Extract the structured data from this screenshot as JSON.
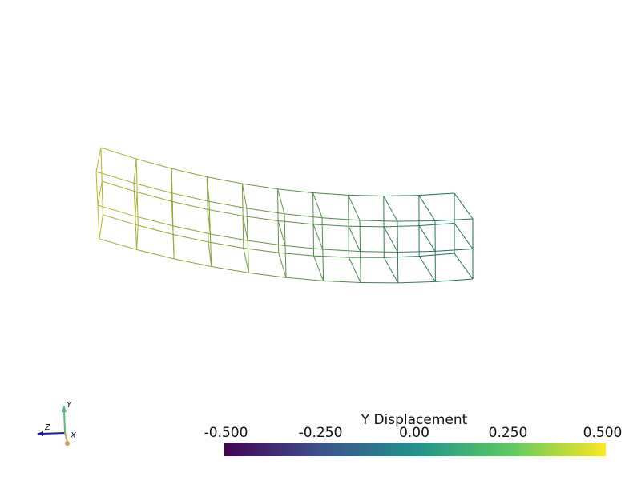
{
  "scalar_bar": {
    "title": "Y Displacement",
    "ticks": [
      "-0.500",
      "-0.250",
      "0.00",
      "0.250",
      "0.500"
    ],
    "range": [
      -0.5,
      0.5
    ],
    "colormap": "viridis",
    "colors": [
      "#440154",
      "#3b528b",
      "#21918c",
      "#5ec962",
      "#fde725"
    ]
  },
  "orientation_widget": {
    "x_label": "X",
    "y_label": "Y",
    "z_label": "Z",
    "x_color": "#c8a060",
    "y_color": "#5cb87a",
    "z_color": "#1a1aa0"
  },
  "mesh": {
    "style": "wireframe",
    "left_color": "#b4b428",
    "right_color": "#14705f"
  }
}
